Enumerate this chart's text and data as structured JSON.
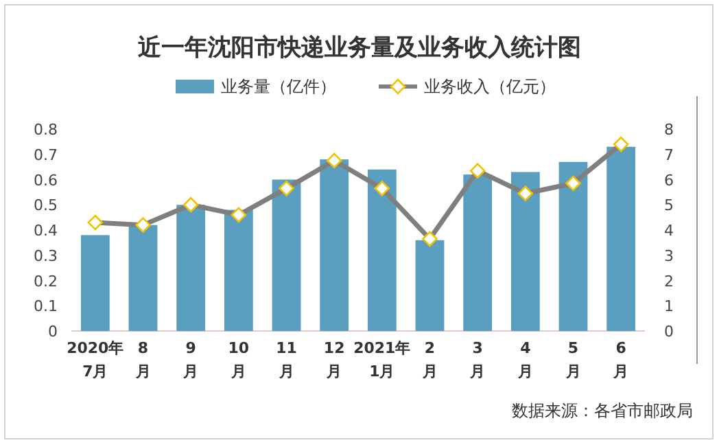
{
  "chart_data": {
    "type": "bar",
    "title": "近一年沈阳市快递业务量及业务收入统计图",
    "categories": [
      "2020年\n7月",
      "8\n月",
      "9\n月",
      "10\n月",
      "11\n月",
      "12\n月",
      "2021年\n1月",
      "2\n月",
      "3\n月",
      "4\n月",
      "5\n月",
      "6\n月"
    ],
    "series": [
      {
        "name": "业务量（亿件）",
        "color": "#5b9fc0",
        "values": [
          0.38,
          0.42,
          0.5,
          0.48,
          0.6,
          0.68,
          0.64,
          0.36,
          0.62,
          0.63,
          0.67,
          0.73
        ]
      },
      {
        "name": "业务收入（亿元）",
        "type": "line",
        "axis": "y2",
        "color": "#7f7f7f",
        "marker": "diamond",
        "values": [
          4.3,
          4.2,
          5.0,
          4.6,
          5.65,
          6.75,
          5.65,
          3.65,
          6.35,
          5.45,
          5.85,
          7.4
        ]
      }
    ],
    "ylim": [
      0,
      0.8
    ],
    "yticks": [
      0,
      0.1,
      0.2,
      0.3,
      0.4,
      0.5,
      0.6,
      0.7,
      0.8
    ],
    "y2lim": [
      0,
      8
    ],
    "y2ticks": [
      0,
      1,
      2,
      3,
      4,
      5,
      6,
      7,
      8
    ],
    "grid": false,
    "legend": "top",
    "annotations": [
      "数据来源：各省市邮政局"
    ]
  }
}
